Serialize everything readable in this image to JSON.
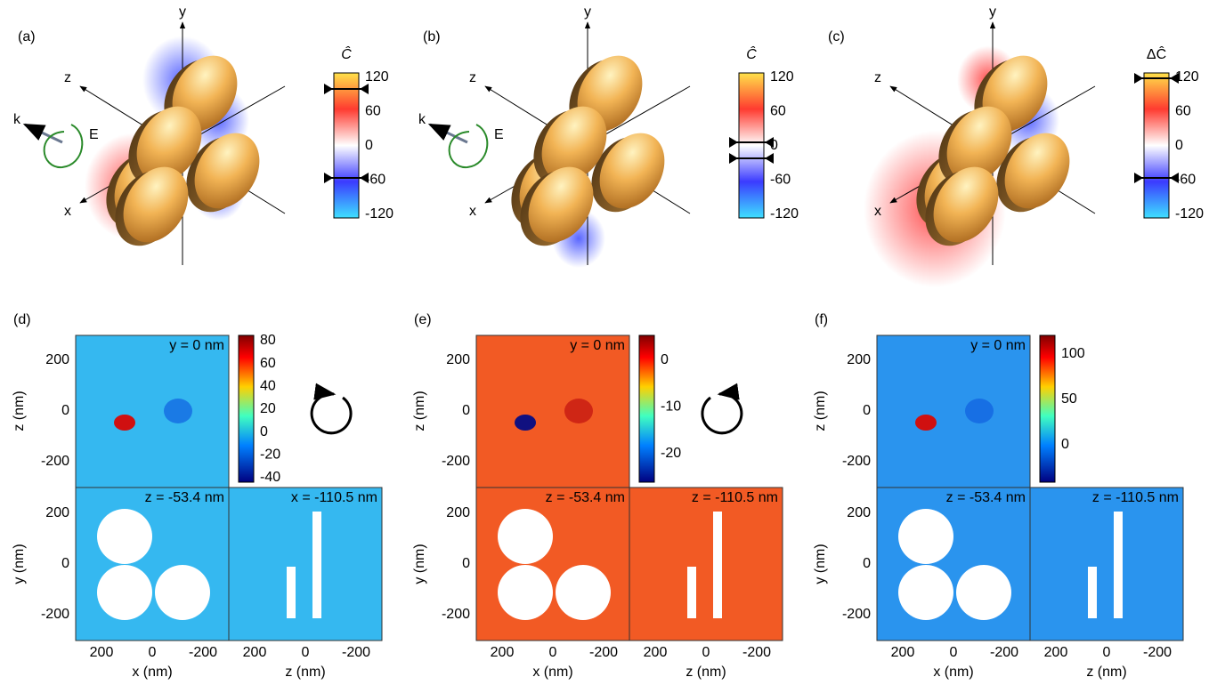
{
  "top_panels": [
    {
      "label": "(a)",
      "axes": {
        "y": "y",
        "z": "z",
        "x": "x"
      },
      "k": "k",
      "E": "E",
      "colorbar": {
        "title": "Ĉ",
        "ticks": [
          "120",
          "60",
          "0",
          "-60",
          "-120"
        ]
      }
    },
    {
      "label": "(b)",
      "axes": {
        "y": "y",
        "z": "z",
        "x": "x"
      },
      "k": "k",
      "E": "E",
      "colorbar": {
        "title": "Ĉ",
        "ticks": [
          "120",
          "60",
          "0",
          "-60",
          "-120"
        ]
      }
    },
    {
      "label": "(c)",
      "axes": {
        "y": "y",
        "z": "z",
        "x": "x"
      },
      "colorbar": {
        "title": "ΔĈ",
        "ticks": [
          "120",
          "60",
          "0",
          "-60",
          "-120"
        ]
      }
    }
  ],
  "bottom_panels": [
    {
      "label": "(d)",
      "colorbar_ticks": [
        "80",
        "60",
        "40",
        "20",
        "0",
        "-20",
        "-40"
      ],
      "maps": [
        "y = 0 nm",
        "z = -53.4 nm",
        "x = -110.5 nm"
      ],
      "axis_labels": {
        "top_y": "z (nm)",
        "bottom_y": "y (nm)",
        "bottom_x_left": "x (nm)",
        "bottom_x_right": "z (nm)"
      },
      "ticks": [
        "200",
        "0",
        "-200"
      ]
    },
    {
      "label": "(e)",
      "colorbar_ticks": [
        "0",
        "-10",
        "-20"
      ],
      "maps": [
        "y = 0 nm",
        "z = -53.4 nm",
        "z = -110.5 nm"
      ],
      "axis_labels": {
        "top_y": "z (nm)",
        "bottom_y": "y (nm)",
        "bottom_x_left": "x (nm)",
        "bottom_x_right": "z (nm)"
      },
      "ticks": [
        "200",
        "0",
        "-200"
      ]
    },
    {
      "label": "(f)",
      "colorbar_ticks": [
        "100",
        "50",
        "0"
      ],
      "maps": [
        "y = 0 nm",
        "z = -53.4 nm",
        "z = -110.5 nm"
      ],
      "axis_labels": {
        "top_y": "z (nm)",
        "bottom_y": "y (nm)",
        "bottom_x_left": "x (nm)",
        "bottom_x_right": "z (nm)"
      },
      "ticks": [
        "200",
        "0",
        "-200"
      ]
    }
  ]
}
